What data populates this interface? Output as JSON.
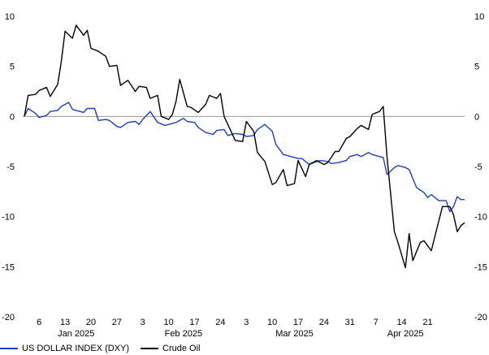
{
  "chart_data": {
    "type": "line",
    "title": "",
    "xlabel": "",
    "ylabel": "",
    "ylim": [
      -20,
      10
    ],
    "yticks": [
      10,
      5,
      0,
      -5,
      -10,
      -15,
      -20
    ],
    "xlim": [
      "2025-01-02",
      "2025-04-28"
    ],
    "x_day_ticks": [
      {
        "date": "2025-01-06",
        "label": "6"
      },
      {
        "date": "2025-01-13",
        "label": "13"
      },
      {
        "date": "2025-01-20",
        "label": "20"
      },
      {
        "date": "2025-01-27",
        "label": "27"
      },
      {
        "date": "2025-02-03",
        "label": "3"
      },
      {
        "date": "2025-02-10",
        "label": "10"
      },
      {
        "date": "2025-02-17",
        "label": "17"
      },
      {
        "date": "2025-02-24",
        "label": "24"
      },
      {
        "date": "2025-03-03",
        "label": "3"
      },
      {
        "date": "2025-03-10",
        "label": "10"
      },
      {
        "date": "2025-03-17",
        "label": "17"
      },
      {
        "date": "2025-03-24",
        "label": "24"
      },
      {
        "date": "2025-03-31",
        "label": "31"
      },
      {
        "date": "2025-04-07",
        "label": "7"
      },
      {
        "date": "2025-04-14",
        "label": "14"
      },
      {
        "date": "2025-04-21",
        "label": "21"
      }
    ],
    "x_month_labels": [
      {
        "date": "2025-01-16",
        "label": "Jan 2025"
      },
      {
        "date": "2025-02-14",
        "label": "Feb 2025"
      },
      {
        "date": "2025-03-16",
        "label": "Mar 2025"
      },
      {
        "date": "2025-04-15",
        "label": "Apr 2025"
      }
    ],
    "zero_line": true,
    "legend_position": "bottom-left",
    "series": [
      {
        "name": "US DOLLAR INDEX (DXY)",
        "color": "#1f3fbf",
        "points": [
          [
            "2025-01-02",
            0.0
          ],
          [
            "2025-01-03",
            0.8
          ],
          [
            "2025-01-05",
            0.3
          ],
          [
            "2025-01-06",
            -0.1
          ],
          [
            "2025-01-08",
            0.1
          ],
          [
            "2025-01-09",
            0.5
          ],
          [
            "2025-01-11",
            0.6
          ],
          [
            "2025-01-12",
            1.0
          ],
          [
            "2025-01-14",
            1.4
          ],
          [
            "2025-01-15",
            0.7
          ],
          [
            "2025-01-17",
            0.5
          ],
          [
            "2025-01-18",
            0.4
          ],
          [
            "2025-01-19",
            0.8
          ],
          [
            "2025-01-21",
            0.8
          ],
          [
            "2025-01-22",
            -0.4
          ],
          [
            "2025-01-24",
            -0.3
          ],
          [
            "2025-01-25",
            -0.4
          ],
          [
            "2025-01-27",
            -1.0
          ],
          [
            "2025-01-28",
            -1.1
          ],
          [
            "2025-01-30",
            -0.6
          ],
          [
            "2025-02-01",
            -0.5
          ],
          [
            "2025-02-02",
            -0.8
          ],
          [
            "2025-02-03",
            -0.3
          ],
          [
            "2025-02-05",
            0.5
          ],
          [
            "2025-02-07",
            -0.6
          ],
          [
            "2025-02-09",
            -0.9
          ],
          [
            "2025-02-10",
            -0.8
          ],
          [
            "2025-02-12",
            -0.6
          ],
          [
            "2025-02-14",
            -0.2
          ],
          [
            "2025-02-15",
            -0.5
          ],
          [
            "2025-02-17",
            -0.6
          ],
          [
            "2025-02-18",
            -1.1
          ],
          [
            "2025-02-20",
            -1.6
          ],
          [
            "2025-02-22",
            -1.8
          ],
          [
            "2025-02-23",
            -1.4
          ],
          [
            "2025-02-25",
            -1.3
          ],
          [
            "2025-02-26",
            -1.9
          ],
          [
            "2025-02-28",
            -1.7
          ],
          [
            "2025-03-02",
            -1.8
          ],
          [
            "2025-03-03",
            -2.0
          ],
          [
            "2025-03-05",
            -1.9
          ],
          [
            "2025-03-06",
            -1.3
          ],
          [
            "2025-03-08",
            -0.8
          ],
          [
            "2025-03-10",
            -1.5
          ],
          [
            "2025-03-11",
            -2.8
          ],
          [
            "2025-03-13",
            -3.8
          ],
          [
            "2025-03-15",
            -4.0
          ],
          [
            "2025-03-17",
            -4.2
          ],
          [
            "2025-03-18",
            -4.2
          ],
          [
            "2025-03-20",
            -4.8
          ],
          [
            "2025-03-22",
            -4.5
          ],
          [
            "2025-03-23",
            -4.4
          ],
          [
            "2025-03-25",
            -4.5
          ],
          [
            "2025-03-26",
            -4.7
          ],
          [
            "2025-03-28",
            -4.6
          ],
          [
            "2025-03-30",
            -4.4
          ],
          [
            "2025-03-31",
            -4.0
          ],
          [
            "2025-04-02",
            -3.8
          ],
          [
            "2025-04-03",
            -4.0
          ],
          [
            "2025-04-05",
            -3.6
          ],
          [
            "2025-04-06",
            -3.8
          ],
          [
            "2025-04-08",
            -4.0
          ],
          [
            "2025-04-09",
            -4.1
          ],
          [
            "2025-04-10",
            -5.8
          ],
          [
            "2025-04-12",
            -5.1
          ],
          [
            "2025-04-13",
            -4.9
          ],
          [
            "2025-04-15",
            -5.1
          ],
          [
            "2025-04-16",
            -5.3
          ],
          [
            "2025-04-18",
            -7.1
          ],
          [
            "2025-04-20",
            -7.6
          ],
          [
            "2025-04-21",
            -8.1
          ],
          [
            "2025-04-22",
            -7.8
          ],
          [
            "2025-04-24",
            -8.4
          ],
          [
            "2025-04-25",
            -8.4
          ],
          [
            "2025-04-26",
            -8.4
          ],
          [
            "2025-04-27",
            -9.5
          ],
          [
            "2025-04-28",
            -9.0
          ],
          [
            "2025-04-29",
            -8.0
          ],
          [
            "2025-04-30",
            -8.3
          ],
          [
            "2025-05-01",
            -8.3
          ]
        ]
      },
      {
        "name": "Crude Oil",
        "color": "#000000",
        "points": [
          [
            "2025-01-02",
            0.0
          ],
          [
            "2025-01-03",
            2.1
          ],
          [
            "2025-01-05",
            2.2
          ],
          [
            "2025-01-06",
            2.6
          ],
          [
            "2025-01-08",
            2.9
          ],
          [
            "2025-01-09",
            2.0
          ],
          [
            "2025-01-11",
            3.2
          ],
          [
            "2025-01-12",
            5.5
          ],
          [
            "2025-01-13",
            8.5
          ],
          [
            "2025-01-15",
            7.8
          ],
          [
            "2025-01-16",
            9.1
          ],
          [
            "2025-01-18",
            8.1
          ],
          [
            "2025-01-19",
            8.6
          ],
          [
            "2025-01-20",
            6.8
          ],
          [
            "2025-01-22",
            6.5
          ],
          [
            "2025-01-24",
            6.0
          ],
          [
            "2025-01-25",
            5.0
          ],
          [
            "2025-01-27",
            5.1
          ],
          [
            "2025-01-28",
            3.1
          ],
          [
            "2025-01-30",
            3.6
          ],
          [
            "2025-02-01",
            2.5
          ],
          [
            "2025-02-02",
            3.0
          ],
          [
            "2025-02-04",
            2.9
          ],
          [
            "2025-02-05",
            1.8
          ],
          [
            "2025-02-07",
            2.1
          ],
          [
            "2025-02-08",
            0.0
          ],
          [
            "2025-02-10",
            -0.3
          ],
          [
            "2025-02-11",
            0.2
          ],
          [
            "2025-02-12",
            1.5
          ],
          [
            "2025-02-13",
            3.7
          ],
          [
            "2025-02-15",
            1.0
          ],
          [
            "2025-02-16",
            0.9
          ],
          [
            "2025-02-18",
            0.4
          ],
          [
            "2025-02-20",
            1.2
          ],
          [
            "2025-02-21",
            2.1
          ],
          [
            "2025-02-23",
            1.8
          ],
          [
            "2025-02-24",
            2.3
          ],
          [
            "2025-02-25",
            0.0
          ],
          [
            "2025-02-27",
            -1.6
          ],
          [
            "2025-02-28",
            -2.4
          ],
          [
            "2025-03-02",
            -2.5
          ],
          [
            "2025-03-03",
            -0.5
          ],
          [
            "2025-03-05",
            -1.5
          ],
          [
            "2025-03-06",
            -3.6
          ],
          [
            "2025-03-08",
            -4.5
          ],
          [
            "2025-03-10",
            -6.8
          ],
          [
            "2025-03-11",
            -6.6
          ],
          [
            "2025-03-13",
            -5.3
          ],
          [
            "2025-03-14",
            -6.9
          ],
          [
            "2025-03-16",
            -6.7
          ],
          [
            "2025-03-17",
            -4.4
          ],
          [
            "2025-03-19",
            -6.0
          ],
          [
            "2025-03-20",
            -4.8
          ],
          [
            "2025-03-22",
            -4.4
          ],
          [
            "2025-03-24",
            -4.8
          ],
          [
            "2025-03-25",
            -4.6
          ],
          [
            "2025-03-27",
            -3.5
          ],
          [
            "2025-03-28",
            -3.5
          ],
          [
            "2025-03-30",
            -2.2
          ],
          [
            "2025-03-31",
            -2.0
          ],
          [
            "2025-04-02",
            -1.2
          ],
          [
            "2025-04-03",
            -0.9
          ],
          [
            "2025-04-05",
            -1.3
          ],
          [
            "2025-04-06",
            0.2
          ],
          [
            "2025-04-08",
            0.5
          ],
          [
            "2025-04-09",
            1.0
          ],
          [
            "2025-04-10",
            -4.0
          ],
          [
            "2025-04-12",
            -11.5
          ],
          [
            "2025-04-13",
            -12.6
          ],
          [
            "2025-04-15",
            -15.1
          ],
          [
            "2025-04-16",
            -11.7
          ],
          [
            "2025-04-17",
            -14.4
          ],
          [
            "2025-04-19",
            -12.6
          ],
          [
            "2025-04-20",
            -12.4
          ],
          [
            "2025-04-22",
            -13.4
          ],
          [
            "2025-04-23",
            -11.9
          ],
          [
            "2025-04-25",
            -9.0
          ],
          [
            "2025-04-26",
            -9.0
          ],
          [
            "2025-04-27",
            -9.0
          ],
          [
            "2025-04-28",
            -9.8
          ],
          [
            "2025-04-29",
            -11.5
          ],
          [
            "2025-04-30",
            -10.9
          ],
          [
            "2025-05-01",
            -10.6
          ]
        ]
      }
    ]
  }
}
